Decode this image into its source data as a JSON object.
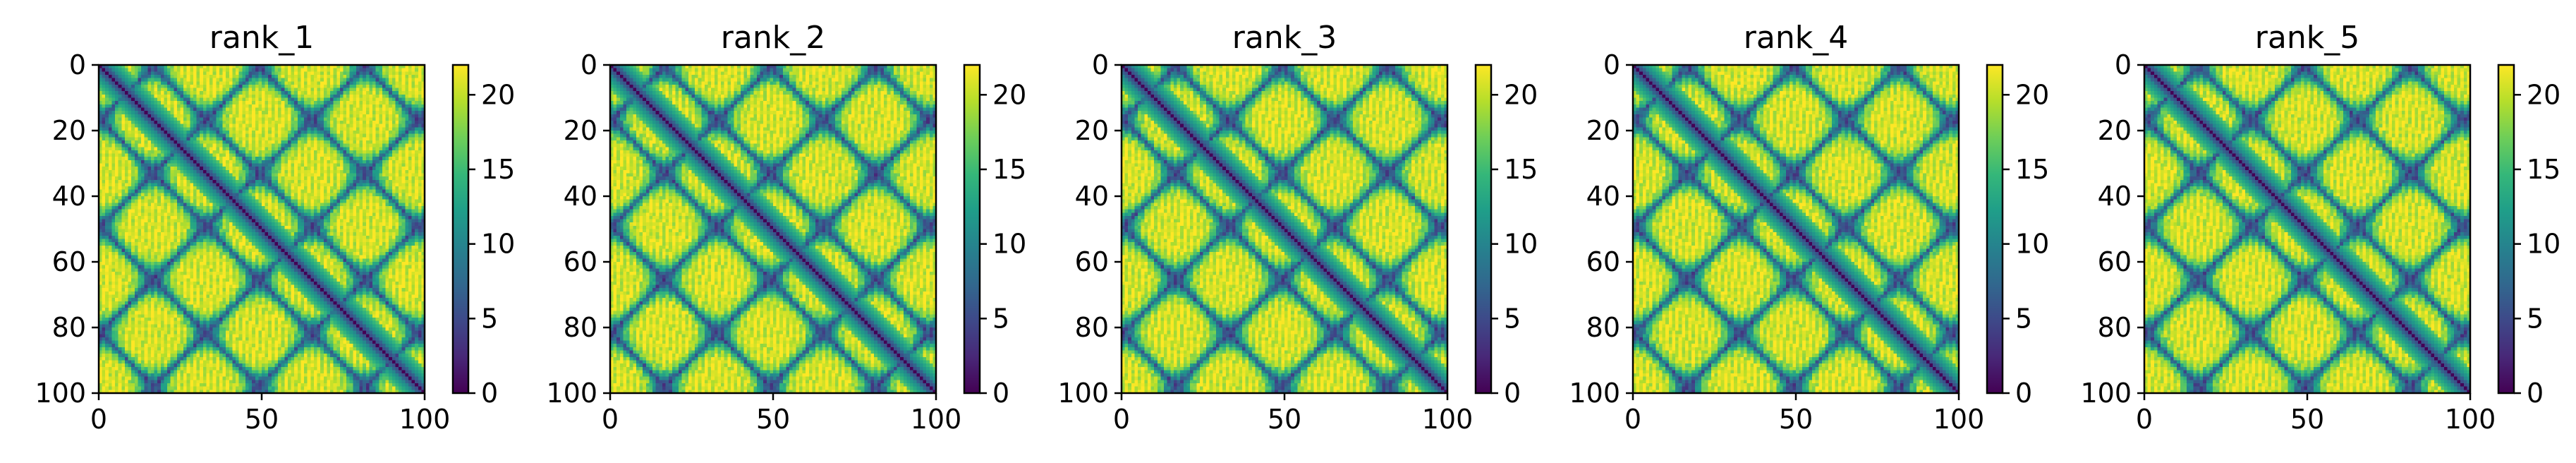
{
  "chart_data": [
    {
      "type": "heatmap",
      "title": "rank_1",
      "x_ticks": [
        "0",
        "50",
        "100"
      ],
      "y_ticks": [
        "0",
        "20",
        "40",
        "60",
        "80",
        "100"
      ],
      "colorbar_ticks": [
        "0",
        "5",
        "10",
        "15",
        "20"
      ],
      "xlim": [
        0,
        100
      ],
      "ylim": [
        100,
        0
      ],
      "clim": [
        0,
        22
      ],
      "colormap": "viridis",
      "grid": false
    },
    {
      "type": "heatmap",
      "title": "rank_2",
      "x_ticks": [
        "0",
        "50",
        "100"
      ],
      "y_ticks": [
        "0",
        "20",
        "40",
        "60",
        "80",
        "100"
      ],
      "colorbar_ticks": [
        "0",
        "5",
        "10",
        "15",
        "20"
      ],
      "xlim": [
        0,
        100
      ],
      "ylim": [
        100,
        0
      ],
      "clim": [
        0,
        22
      ],
      "colormap": "viridis",
      "grid": false
    },
    {
      "type": "heatmap",
      "title": "rank_3",
      "x_ticks": [
        "0",
        "50",
        "100"
      ],
      "y_ticks": [
        "0",
        "20",
        "40",
        "60",
        "80",
        "100"
      ],
      "colorbar_ticks": [
        "0",
        "5",
        "10",
        "15",
        "20"
      ],
      "xlim": [
        0,
        100
      ],
      "ylim": [
        100,
        0
      ],
      "clim": [
        0,
        22
      ],
      "colormap": "viridis",
      "grid": false
    },
    {
      "type": "heatmap",
      "title": "rank_4",
      "x_ticks": [
        "0",
        "50",
        "100"
      ],
      "y_ticks": [
        "0",
        "20",
        "40",
        "60",
        "80",
        "100"
      ],
      "colorbar_ticks": [
        "0",
        "5",
        "10",
        "15",
        "20"
      ],
      "xlim": [
        0,
        100
      ],
      "ylim": [
        100,
        0
      ],
      "clim": [
        0,
        22
      ],
      "colormap": "viridis",
      "grid": false
    },
    {
      "type": "heatmap",
      "title": "rank_5",
      "x_ticks": [
        "0",
        "50",
        "100"
      ],
      "y_ticks": [
        "0",
        "20",
        "40",
        "60",
        "80",
        "100"
      ],
      "colorbar_ticks": [
        "0",
        "5",
        "10",
        "15",
        "20"
      ],
      "xlim": [
        0,
        100
      ],
      "ylim": [
        100,
        0
      ],
      "clim": [
        0,
        22
      ],
      "colormap": "viridis",
      "grid": false
    }
  ]
}
